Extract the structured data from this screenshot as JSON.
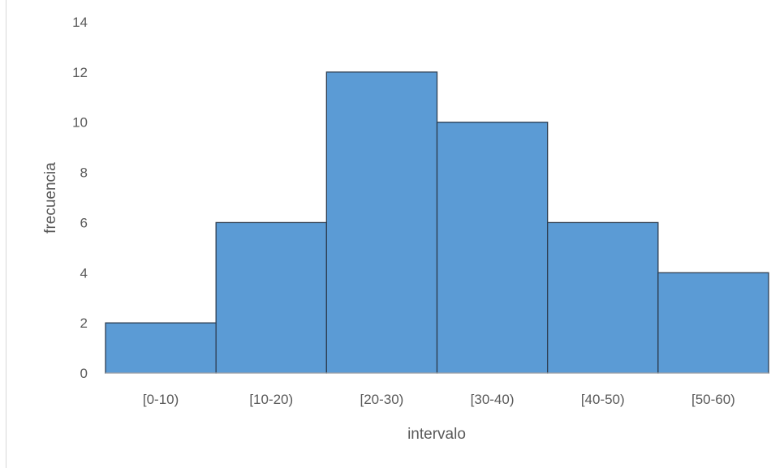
{
  "chart_data": {
    "type": "bar",
    "title": "",
    "xlabel": "intervalo",
    "ylabel": "frecuencia",
    "categories": [
      "[0-10)",
      "[10-20)",
      "[20-30)",
      "[30-40)",
      "[40-50)",
      "[50-60)"
    ],
    "values": [
      2,
      6,
      12,
      10,
      6,
      4
    ],
    "ylim": [
      0,
      14
    ],
    "yticks": [
      "0",
      "2",
      "4",
      "6",
      "8",
      "10",
      "12",
      "14"
    ],
    "grid": false,
    "legend": "none",
    "colors": {
      "bar": "#5b9bd5",
      "bar_border": "#2e3f52",
      "text": "#595959",
      "axis": "#bfbfbf"
    }
  }
}
